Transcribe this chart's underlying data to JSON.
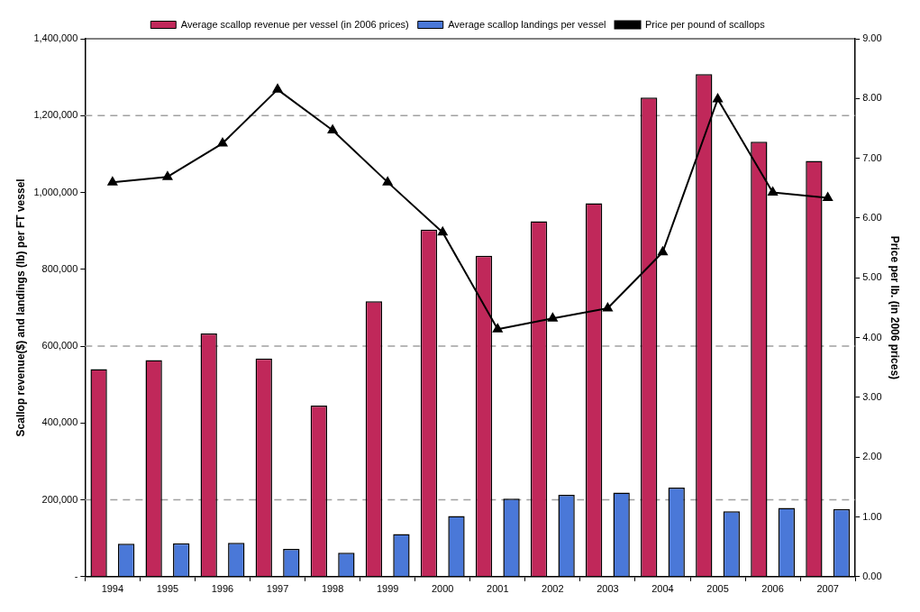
{
  "chart_data": {
    "type": "bar",
    "ylabel": "Scallop revenue($) and landings (lb) per FT vessel",
    "y2label": "Price per lb. (in 2006 prices)",
    "categories": [
      "1994",
      "1995",
      "1996",
      "1997",
      "1998",
      "1999",
      "2000",
      "2001",
      "2002",
      "2003",
      "2004",
      "2005",
      "2006",
      "2007"
    ],
    "series": [
      {
        "name": "Average scallop revenue per vessel (in 2006 prices)",
        "color": "#c0285a",
        "values": [
          540000,
          564000,
          633000,
          568000,
          445000,
          717000,
          903000,
          835000,
          925000,
          972000,
          1247000,
          1308000,
          1132000,
          1082000
        ]
      },
      {
        "name": "Average scallop landings per vessel",
        "color": "#4a78d8",
        "values": [
          86000,
          87000,
          88000,
          72000,
          62000,
          111000,
          158000,
          203000,
          213000,
          219000,
          232000,
          170000,
          179000,
          176000
        ]
      },
      {
        "name": "Price per pound of scallops",
        "type": "line",
        "axis": "y2",
        "color": "#000000",
        "marker": "triangle",
        "values": [
          6.6,
          6.69,
          7.25,
          8.15,
          7.47,
          6.6,
          5.76,
          4.14,
          4.32,
          4.49,
          5.43,
          7.99,
          6.43,
          6.34
        ]
      }
    ],
    "ylim": [
      0,
      1400000
    ],
    "yticks": [
      {
        "value": 0,
        "label": "-"
      },
      {
        "value": 200000,
        "label": "200,000"
      },
      {
        "value": 400000,
        "label": "400,000"
      },
      {
        "value": 600000,
        "label": "600,000"
      },
      {
        "value": 800000,
        "label": "800,000"
      },
      {
        "value": 1000000,
        "label": "1,000,000"
      },
      {
        "value": 1200000,
        "label": "1,200,000"
      },
      {
        "value": 1400000,
        "label": "1,400,000"
      }
    ],
    "y2lim": [
      0,
      9
    ],
    "y2ticks": [
      {
        "value": 0,
        "label": "0.00"
      },
      {
        "value": 1,
        "label": "1.00"
      },
      {
        "value": 2,
        "label": "2.00"
      },
      {
        "value": 3,
        "label": "3.00"
      },
      {
        "value": 4,
        "label": "4.00"
      },
      {
        "value": 5,
        "label": "5.00"
      },
      {
        "value": 6,
        "label": "6.00"
      },
      {
        "value": 7,
        "label": "7.00"
      },
      {
        "value": 8,
        "label": "8.00"
      },
      {
        "value": 9,
        "label": "9.00"
      }
    ],
    "ref_lines": [
      {
        "axis": "y",
        "value": 200000,
        "color": "#a0a0a0",
        "line_style": "dashed"
      },
      {
        "axis": "y",
        "value": 600000,
        "color": "#a0a0a0",
        "line_style": "dashed"
      },
      {
        "axis": "y",
        "value": 1200000,
        "color": "#a0a0a0",
        "line_style": "dashed"
      }
    ],
    "grid": false,
    "legend": "top"
  }
}
